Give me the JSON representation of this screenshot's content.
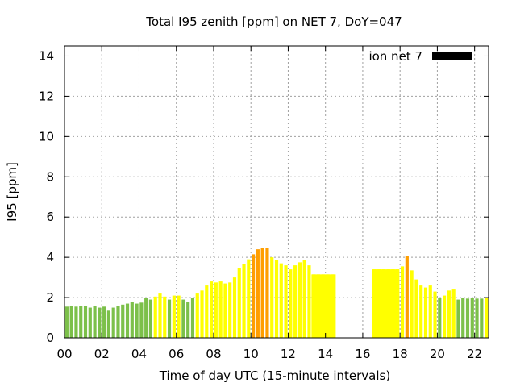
{
  "chart_data": {
    "type": "bar",
    "title": "Total I95 zenith [ppm] on NET 7, DoY=047",
    "xlabel": "Time of day UTC (15-minute intervals)",
    "ylabel": "I95 [ppm]",
    "xlim": [
      0,
      22.75
    ],
    "ylim": [
      0,
      14.5
    ],
    "x_ticks": [
      "00",
      "02",
      "04",
      "06",
      "08",
      "10",
      "12",
      "14",
      "16",
      "18",
      "20",
      "22"
    ],
    "y_ticks": [
      "0",
      "2",
      "4",
      "6",
      "8",
      "10",
      "12",
      "14"
    ],
    "grid": true,
    "legend": {
      "label": "ion net 7",
      "color": "#000000",
      "placement": "top-right"
    },
    "colors": {
      "green": "#7cc04a",
      "yellow": "#ffff00",
      "orange": "#ff9e00"
    },
    "bar_width_hours": 0.18,
    "bars": [
      {
        "x": 0.125,
        "value": 1.55,
        "color": "green"
      },
      {
        "x": 0.375,
        "value": 1.6,
        "color": "green"
      },
      {
        "x": 0.625,
        "value": 1.55,
        "color": "green"
      },
      {
        "x": 0.875,
        "value": 1.6,
        "color": "green"
      },
      {
        "x": 1.125,
        "value": 1.6,
        "color": "green"
      },
      {
        "x": 1.375,
        "value": 1.5,
        "color": "green"
      },
      {
        "x": 1.625,
        "value": 1.6,
        "color": "green"
      },
      {
        "x": 1.875,
        "value": 1.5,
        "color": "green"
      },
      {
        "x": 2.125,
        "value": 1.55,
        "color": "green"
      },
      {
        "x": 2.375,
        "value": 1.35,
        "color": "green"
      },
      {
        "x": 2.625,
        "value": 1.5,
        "color": "green"
      },
      {
        "x": 2.875,
        "value": 1.6,
        "color": "green"
      },
      {
        "x": 3.125,
        "value": 1.65,
        "color": "green"
      },
      {
        "x": 3.375,
        "value": 1.7,
        "color": "green"
      },
      {
        "x": 3.625,
        "value": 1.8,
        "color": "green"
      },
      {
        "x": 3.875,
        "value": 1.7,
        "color": "green"
      },
      {
        "x": 4.125,
        "value": 1.75,
        "color": "green"
      },
      {
        "x": 4.375,
        "value": 2.0,
        "color": "green"
      },
      {
        "x": 4.625,
        "value": 1.9,
        "color": "green"
      },
      {
        "x": 4.875,
        "value": 2.05,
        "color": "yellow"
      },
      {
        "x": 5.125,
        "value": 2.2,
        "color": "yellow"
      },
      {
        "x": 5.375,
        "value": 2.05,
        "color": "yellow"
      },
      {
        "x": 5.625,
        "value": 1.9,
        "color": "green"
      },
      {
        "x": 5.875,
        "value": 2.1,
        "color": "yellow"
      },
      {
        "x": 6.125,
        "value": 2.1,
        "color": "yellow"
      },
      {
        "x": 6.375,
        "value": 1.9,
        "color": "green"
      },
      {
        "x": 6.625,
        "value": 1.8,
        "color": "green"
      },
      {
        "x": 6.875,
        "value": 2.0,
        "color": "green"
      },
      {
        "x": 7.125,
        "value": 2.2,
        "color": "yellow"
      },
      {
        "x": 7.375,
        "value": 2.35,
        "color": "yellow"
      },
      {
        "x": 7.625,
        "value": 2.6,
        "color": "yellow"
      },
      {
        "x": 7.875,
        "value": 2.8,
        "color": "yellow"
      },
      {
        "x": 8.125,
        "value": 2.75,
        "color": "yellow"
      },
      {
        "x": 8.375,
        "value": 2.8,
        "color": "yellow"
      },
      {
        "x": 8.625,
        "value": 2.7,
        "color": "yellow"
      },
      {
        "x": 8.875,
        "value": 2.75,
        "color": "yellow"
      },
      {
        "x": 9.125,
        "value": 3.0,
        "color": "yellow"
      },
      {
        "x": 9.375,
        "value": 3.45,
        "color": "yellow"
      },
      {
        "x": 9.625,
        "value": 3.65,
        "color": "yellow"
      },
      {
        "x": 9.875,
        "value": 3.9,
        "color": "yellow"
      },
      {
        "x": 10.125,
        "value": 4.15,
        "color": "orange"
      },
      {
        "x": 10.375,
        "value": 4.4,
        "color": "orange"
      },
      {
        "x": 10.625,
        "value": 4.45,
        "color": "orange"
      },
      {
        "x": 10.875,
        "value": 4.45,
        "color": "orange"
      },
      {
        "x": 11.125,
        "value": 4.0,
        "color": "yellow"
      },
      {
        "x": 11.375,
        "value": 3.85,
        "color": "yellow"
      },
      {
        "x": 11.625,
        "value": 3.7,
        "color": "yellow"
      },
      {
        "x": 11.875,
        "value": 3.6,
        "color": "yellow"
      },
      {
        "x": 12.125,
        "value": 3.4,
        "color": "yellow"
      },
      {
        "x": 12.375,
        "value": 3.6,
        "color": "yellow"
      },
      {
        "x": 12.625,
        "value": 3.75,
        "color": "yellow"
      },
      {
        "x": 12.875,
        "value": 3.85,
        "color": "yellow"
      },
      {
        "x": 13.125,
        "value": 3.6,
        "color": "yellow"
      },
      {
        "x": 13.375,
        "value": 3.15,
        "color": "yellow"
      },
      {
        "x": 13.625,
        "value": 3.15,
        "color": "yellow"
      },
      {
        "x": 13.875,
        "value": 3.15,
        "color": "yellow"
      },
      {
        "x": 14.125,
        "value": 3.15,
        "color": "yellow"
      },
      {
        "x": 14.375,
        "value": 3.15,
        "color": "yellow"
      },
      {
        "x": 16.625,
        "value": 3.4,
        "color": "yellow"
      },
      {
        "x": 16.875,
        "value": 3.4,
        "color": "yellow"
      },
      {
        "x": 17.125,
        "value": 3.4,
        "color": "yellow"
      },
      {
        "x": 17.375,
        "value": 3.4,
        "color": "yellow"
      },
      {
        "x": 17.625,
        "value": 3.4,
        "color": "yellow"
      },
      {
        "x": 17.875,
        "value": 3.4,
        "color": "yellow"
      },
      {
        "x": 18.125,
        "value": 3.55,
        "color": "yellow"
      },
      {
        "x": 18.375,
        "value": 4.05,
        "color": "orange"
      },
      {
        "x": 18.625,
        "value": 3.35,
        "color": "yellow"
      },
      {
        "x": 18.875,
        "value": 2.9,
        "color": "yellow"
      },
      {
        "x": 19.125,
        "value": 2.6,
        "color": "yellow"
      },
      {
        "x": 19.375,
        "value": 2.5,
        "color": "yellow"
      },
      {
        "x": 19.625,
        "value": 2.6,
        "color": "yellow"
      },
      {
        "x": 19.875,
        "value": 2.3,
        "color": "yellow"
      },
      {
        "x": 20.125,
        "value": 2.0,
        "color": "green"
      },
      {
        "x": 20.375,
        "value": 2.1,
        "color": "yellow"
      },
      {
        "x": 20.625,
        "value": 2.35,
        "color": "yellow"
      },
      {
        "x": 20.875,
        "value": 2.4,
        "color": "yellow"
      },
      {
        "x": 21.125,
        "value": 1.9,
        "color": "green"
      },
      {
        "x": 21.375,
        "value": 2.0,
        "color": "green"
      },
      {
        "x": 21.625,
        "value": 1.95,
        "color": "green"
      },
      {
        "x": 21.875,
        "value": 2.0,
        "color": "green"
      },
      {
        "x": 22.125,
        "value": 1.95,
        "color": "green"
      },
      {
        "x": 22.375,
        "value": 1.95,
        "color": "green"
      },
      {
        "x": 22.625,
        "value": 2.0,
        "color": "yellow"
      }
    ],
    "filled_blocks": [
      {
        "x_start": 13.25,
        "x_end": 14.55,
        "value": 3.15,
        "color": "yellow"
      },
      {
        "x_start": 16.5,
        "x_end": 17.95,
        "value": 3.4,
        "color": "yellow"
      }
    ]
  }
}
